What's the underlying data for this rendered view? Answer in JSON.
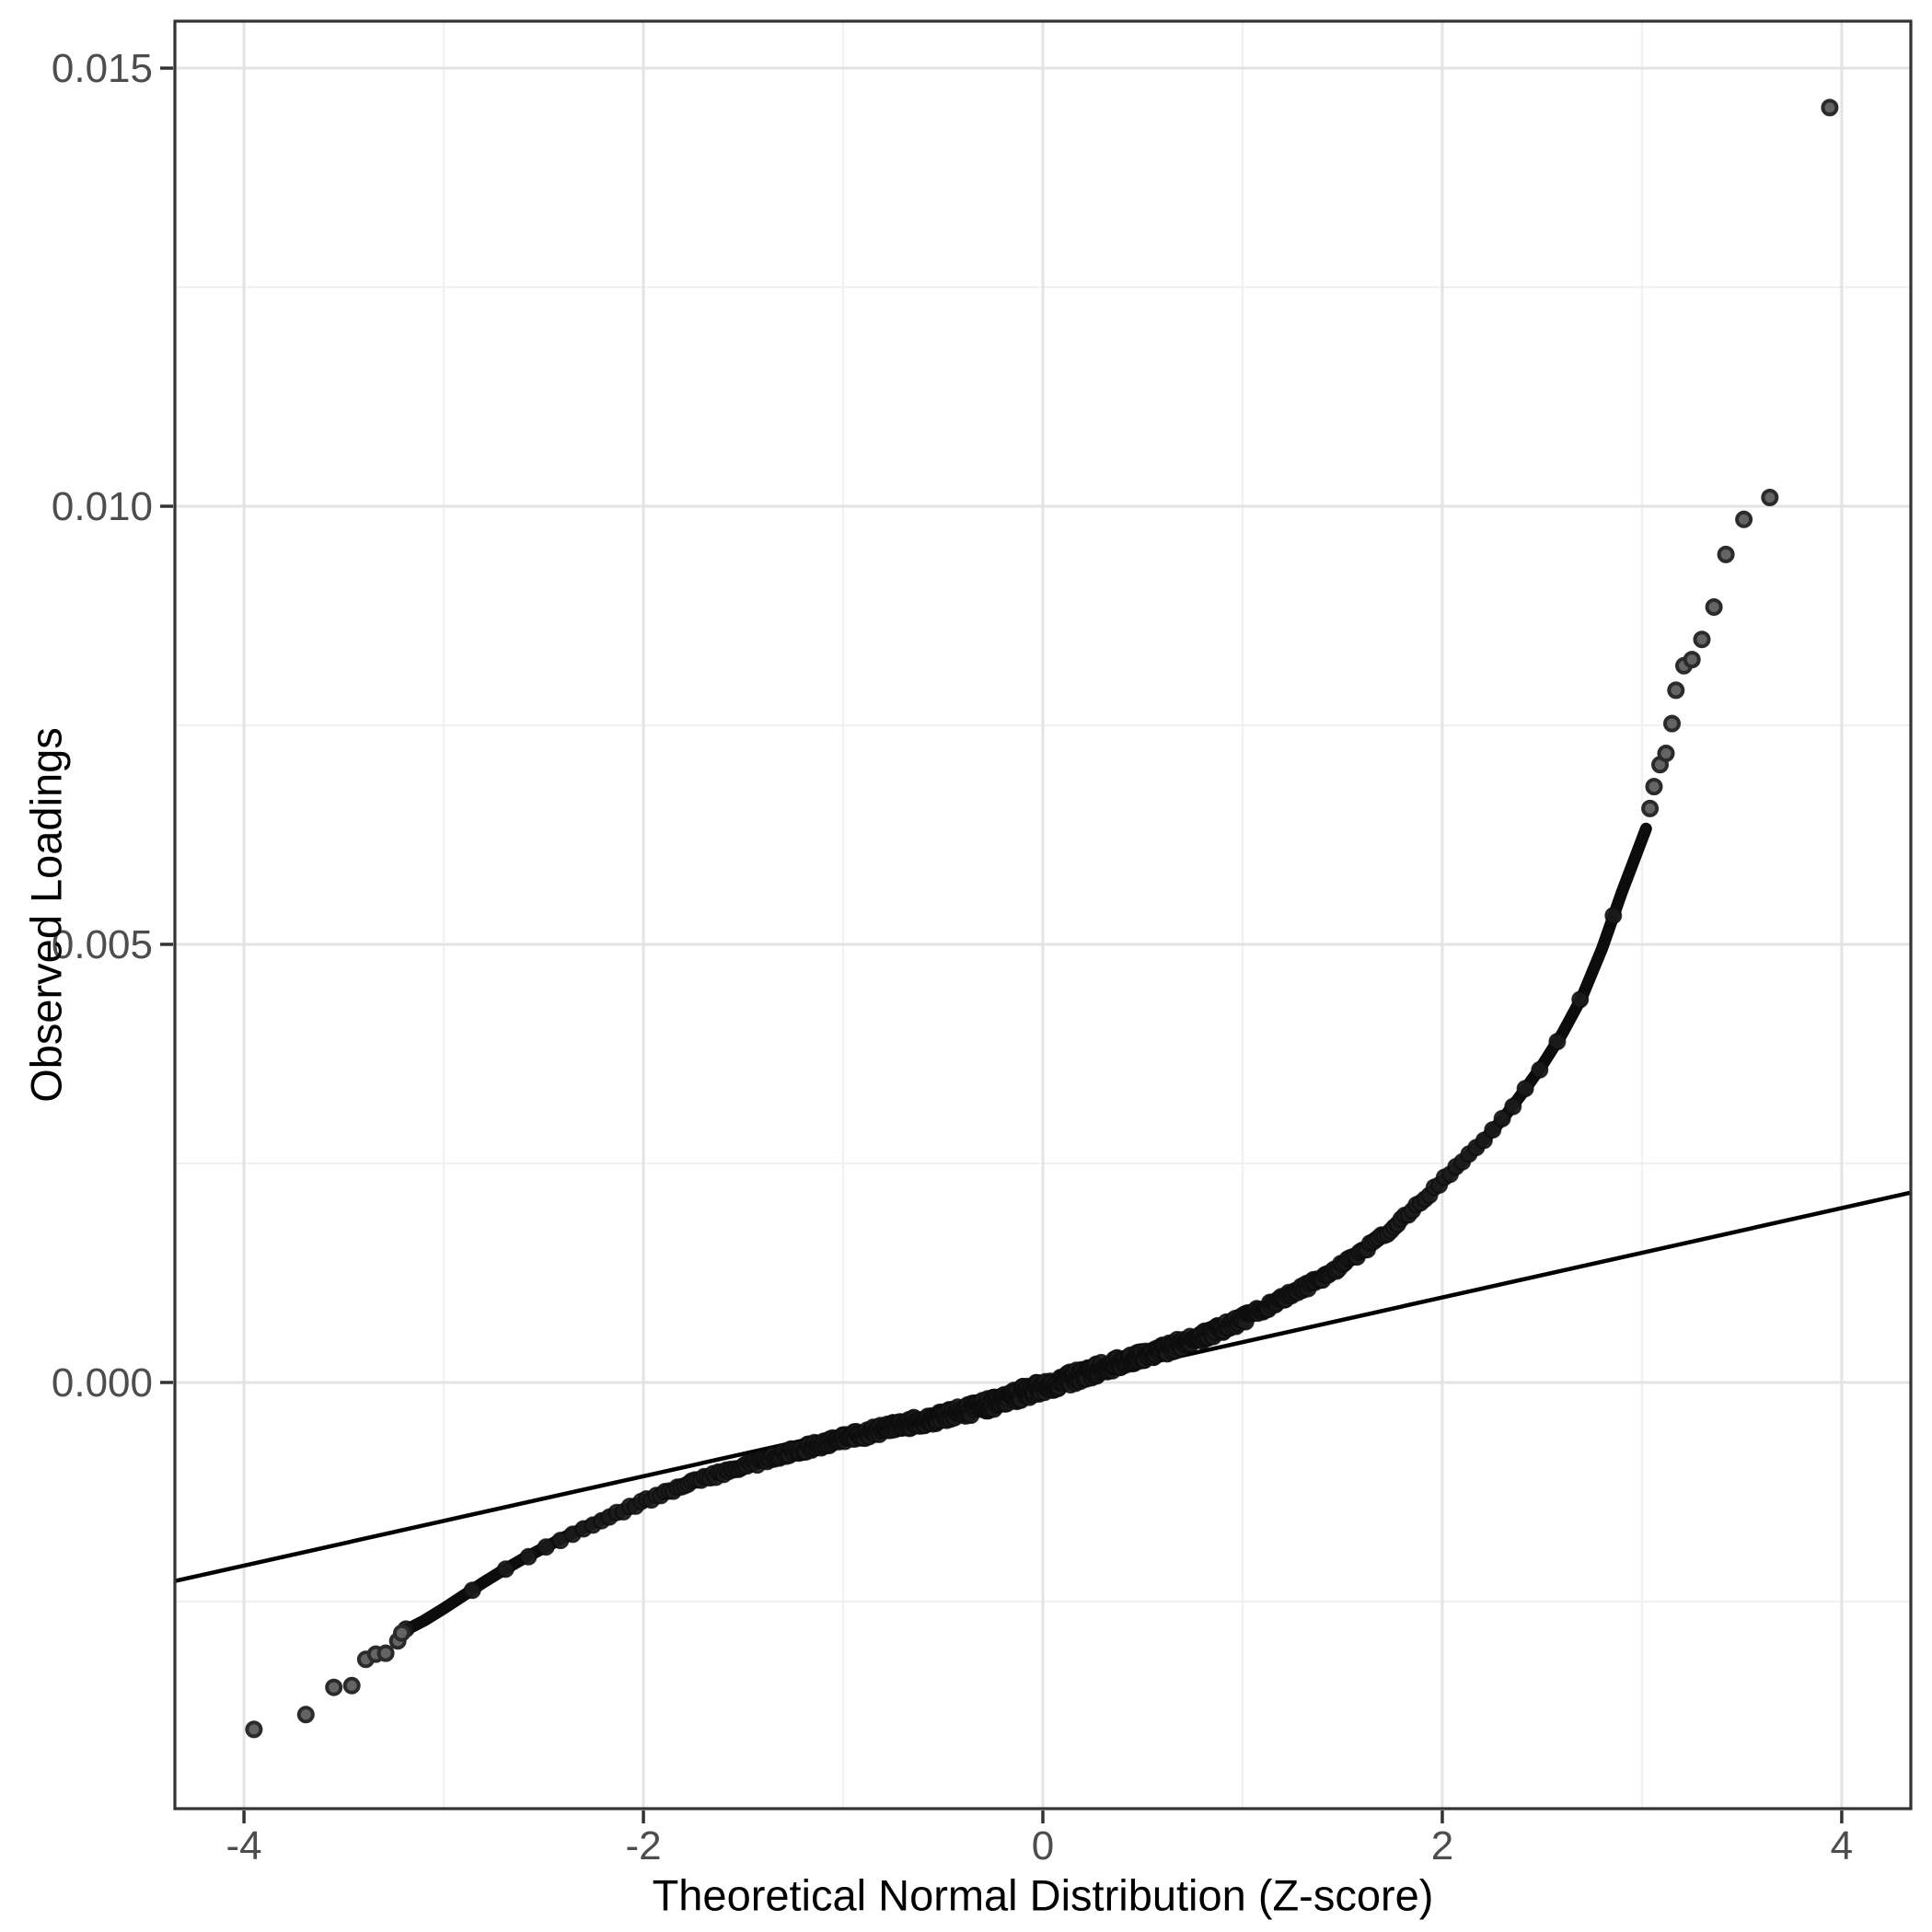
{
  "chart_data": {
    "type": "scatter",
    "subtype": "qq-plot",
    "title": "",
    "xlabel": "Theoretical Normal Distribution (Z-score)",
    "ylabel": "Observed Loadings",
    "xlim": [
      -4.346,
      4.346
    ],
    "ylim": [
      -0.004864,
      0.015536
    ],
    "grid": true,
    "legend": false,
    "x_ticks": {
      "major_values": [
        -4,
        -2,
        0,
        2,
        4
      ],
      "major_labels": [
        "-4",
        "-2",
        "0",
        "2",
        "4"
      ],
      "minor_values": [
        -3,
        -1,
        1,
        3
      ]
    },
    "y_ticks": {
      "major_values": [
        0.0,
        0.005,
        0.01,
        0.015
      ],
      "major_labels": [
        "0.000",
        "0.005",
        "0.010",
        "0.015"
      ],
      "minor_values": [
        -0.0025,
        0.0025,
        0.0075,
        0.0125
      ]
    },
    "reference_line": {
      "slope": 0.00051,
      "intercept": -5e-05,
      "color": "#000000",
      "width": 4.5
    },
    "qq_curve_points": [
      [
        -3.21,
        -0.00285
      ],
      [
        -3.1,
        -0.00272
      ],
      [
        -3.0,
        -0.00258
      ],
      [
        -2.9,
        -0.00243
      ],
      [
        -2.8,
        -0.00228
      ],
      [
        -2.7,
        -0.00214
      ],
      [
        -2.6,
        -0.00201
      ],
      [
        -2.5,
        -0.00189
      ],
      [
        -2.4,
        -0.00177
      ],
      [
        -2.3,
        -0.00166
      ],
      [
        -2.2,
        -0.00156
      ],
      [
        -2.1,
        -0.00146
      ],
      [
        -2.0,
        -0.00136
      ],
      [
        -1.9,
        -0.00127
      ],
      [
        -1.8,
        -0.00118
      ],
      [
        -1.7,
        -0.0011
      ],
      [
        -1.6,
        -0.00103
      ],
      [
        -1.5,
        -0.00096
      ],
      [
        -1.4,
        -0.00089
      ],
      [
        -1.3,
        -0.00082
      ],
      [
        -1.2,
        -0.00076
      ],
      [
        -1.1,
        -0.0007
      ],
      [
        -1.0,
        -0.00064
      ],
      [
        -0.9,
        -0.00059
      ],
      [
        -0.8,
        -0.00054
      ],
      [
        -0.7,
        -0.00049
      ],
      [
        -0.6,
        -0.00044
      ],
      [
        -0.5,
        -0.00039
      ],
      [
        -0.4,
        -0.00033
      ],
      [
        -0.3,
        -0.00027
      ],
      [
        -0.2,
        -0.0002
      ],
      [
        -0.1,
        -0.00012
      ],
      [
        0.0,
        -5e-05
      ],
      [
        0.1,
        2e-05
      ],
      [
        0.2,
        9e-05
      ],
      [
        0.3,
        0.00016
      ],
      [
        0.4,
        0.00023
      ],
      [
        0.5,
        0.0003
      ],
      [
        0.6,
        0.00037
      ],
      [
        0.7,
        0.00045
      ],
      [
        0.8,
        0.00053
      ],
      [
        0.9,
        0.00062
      ],
      [
        1.0,
        0.00072
      ],
      [
        1.1,
        0.00083
      ],
      [
        1.2,
        0.00095
      ],
      [
        1.3,
        0.00107
      ],
      [
        1.4,
        0.0012
      ],
      [
        1.5,
        0.00134
      ],
      [
        1.6,
        0.0015
      ],
      [
        1.7,
        0.00167
      ],
      [
        1.8,
        0.00186
      ],
      [
        1.9,
        0.00207
      ],
      [
        2.0,
        0.0023
      ],
      [
        2.1,
        0.00252
      ],
      [
        2.2,
        0.00275
      ],
      [
        2.3,
        0.003
      ],
      [
        2.4,
        0.0033
      ],
      [
        2.5,
        0.00362
      ],
      [
        2.6,
        0.00398
      ],
      [
        2.7,
        0.0044
      ],
      [
        2.8,
        0.00495
      ],
      [
        2.9,
        0.0056
      ],
      [
        2.95,
        0.0059
      ],
      [
        3.02,
        0.00632
      ]
    ],
    "left_tail_points": [
      [
        -3.95,
        -0.00396
      ],
      [
        -3.69,
        -0.00379
      ],
      [
        -3.55,
        -0.00348
      ],
      [
        -3.46,
        -0.00346
      ],
      [
        -3.39,
        -0.00316
      ],
      [
        -3.34,
        -0.0031
      ],
      [
        -3.29,
        -0.00309
      ],
      [
        -3.23,
        -0.00295
      ],
      [
        -3.21,
        -0.00286
      ]
    ],
    "right_tail_points": [
      [
        3.04,
        0.00655
      ],
      [
        3.06,
        0.0068
      ],
      [
        3.09,
        0.00705
      ],
      [
        3.12,
        0.00718
      ],
      [
        3.15,
        0.00752
      ],
      [
        3.17,
        0.0079
      ],
      [
        3.21,
        0.00818
      ],
      [
        3.25,
        0.00825
      ],
      [
        3.3,
        0.00848
      ],
      [
        3.36,
        0.00885
      ],
      [
        3.42,
        0.00945
      ],
      [
        3.51,
        0.00985
      ],
      [
        3.64,
        0.0101
      ],
      [
        3.94,
        0.01455
      ]
    ],
    "approx_n_band_points": 700,
    "point_style": {
      "band_fill": "#1b1b1b",
      "band_stroke": "#0c0c0c",
      "tail_fill": "#646464",
      "tail_stroke": "#2b2b2b"
    },
    "colors": {
      "background": "#ffffff",
      "panel_border": "#333333",
      "grid_major": "#e3e3e3",
      "grid_minor": "#f1f1f1",
      "tick": "#333333",
      "tick_label": "#4d4d4d",
      "axis_title": "#000000"
    }
  }
}
